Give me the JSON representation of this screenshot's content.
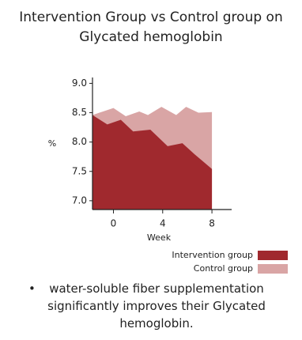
{
  "chart_data": {
    "type": "area",
    "title": "Intervention Group vs Control group on Glycated hemoglobin",
    "x_label": "Week",
    "y_label": "%",
    "annotation": "water-soluble fiber supplementation significantly improves their Glycated hemoglobin.",
    "xlim": [
      -1.7,
      9.6
    ],
    "xticks": [
      0,
      4,
      8
    ],
    "ylim": [
      6.85,
      9.1
    ],
    "yticks": [
      {
        "value": 7.0,
        "label": "7.0"
      },
      7.5,
      {
        "value": 8.0,
        "label": "8.0"
      },
      8.5,
      {
        "value": 9.0,
        "label": "9.0"
      }
    ],
    "series": [
      {
        "name": "Control group",
        "color": "#d9a5a5",
        "x": [
          -1.7,
          0,
          1,
          2.1,
          2.8,
          3.9,
          5.1,
          5.9,
          6.9,
          8
        ],
        "values": [
          8.46,
          8.58,
          8.44,
          8.52,
          8.46,
          8.6,
          8.46,
          8.6,
          8.5,
          8.51
        ]
      },
      {
        "name": "Intervention group",
        "color": "#a0292e",
        "x": [
          -1.7,
          -0.5,
          0.6,
          1.6,
          3,
          4.4,
          5.6,
          6.6,
          8
        ],
        "values": [
          8.46,
          8.3,
          8.38,
          8.18,
          8.21,
          7.93,
          7.98,
          7.79,
          7.54
        ]
      }
    ]
  }
}
